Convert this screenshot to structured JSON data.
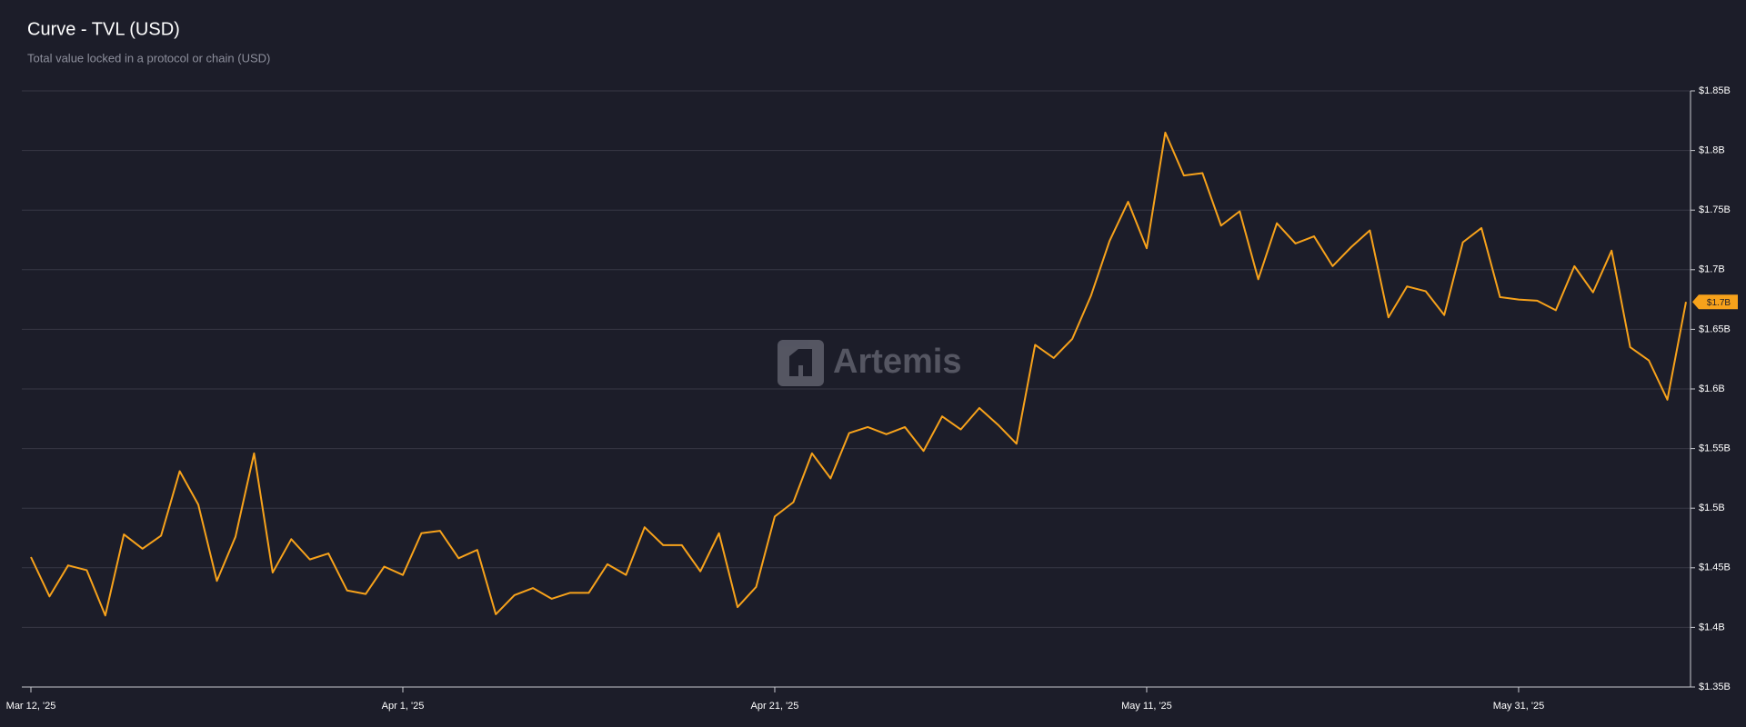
{
  "chart_data": {
    "type": "line",
    "title": "Curve - TVL (USD)",
    "subtitle": "Total value locked in a protocol or chain (USD)",
    "watermark": "Artemis",
    "categories": [
      "Mar 12, '25",
      null,
      null,
      null,
      null,
      null,
      null,
      null,
      null,
      null,
      null,
      null,
      null,
      null,
      null,
      null,
      null,
      null,
      null,
      null,
      "Apr 1, '25",
      null,
      null,
      null,
      null,
      null,
      null,
      null,
      null,
      null,
      null,
      null,
      null,
      null,
      null,
      null,
      null,
      null,
      null,
      null,
      "Apr 21, '25",
      null,
      null,
      null,
      null,
      null,
      null,
      null,
      null,
      null,
      null,
      null,
      null,
      null,
      null,
      null,
      null,
      null,
      null,
      null,
      "May 11, '25",
      null,
      null,
      null,
      null,
      null,
      null,
      null,
      null,
      null,
      null,
      null,
      null,
      null,
      null,
      null,
      null,
      null,
      null,
      null,
      "May 31, '25",
      null,
      null,
      null,
      null,
      null,
      null,
      null,
      null,
      null
    ],
    "series": [
      {
        "name": "TVL",
        "color": "#f7a21b",
        "values": [
          1.459,
          1.426,
          1.452,
          1.448,
          1.41,
          1.478,
          1.466,
          1.477,
          1.531,
          1.503,
          1.439,
          1.476,
          1.546,
          1.446,
          1.474,
          1.457,
          1.462,
          1.431,
          1.428,
          1.451,
          1.444,
          1.479,
          1.481,
          1.458,
          1.465,
          1.411,
          1.427,
          1.433,
          1.424,
          1.429,
          1.429,
          1.453,
          1.444,
          1.484,
          1.469,
          1.469,
          1.447,
          1.479,
          1.417,
          1.434,
          1.493,
          1.505,
          1.546,
          1.525,
          1.563,
          1.568,
          1.562,
          1.568,
          1.548,
          1.577,
          1.566,
          1.584,
          1.57,
          1.554,
          1.637,
          1.626,
          1.642,
          1.678,
          1.724,
          1.757,
          1.718,
          1.815,
          1.779,
          1.781,
          1.737,
          1.749,
          1.692,
          1.739,
          1.722,
          1.728,
          1.703,
          1.719,
          1.733,
          1.66,
          1.686,
          1.682,
          1.662,
          1.723,
          1.735,
          1.677,
          1.675,
          1.674,
          1.666,
          1.703,
          1.681,
          1.716,
          1.635,
          1.624,
          1.591,
          1.673
        ]
      }
    ],
    "last_value_label": "$1.7B",
    "ylim": [
      1.35,
      1.85
    ],
    "yticks": [
      {
        "value": 1.35,
        "label": "$1.35B"
      },
      {
        "value": 1.4,
        "label": "$1.4B"
      },
      {
        "value": 1.45,
        "label": "$1.45B"
      },
      {
        "value": 1.5,
        "label": "$1.5B"
      },
      {
        "value": 1.55,
        "label": "$1.55B"
      },
      {
        "value": 1.6,
        "label": "$1.6B"
      },
      {
        "value": 1.65,
        "label": "$1.65B"
      },
      {
        "value": 1.7,
        "label": "$1.7B"
      },
      {
        "value": 1.75,
        "label": "$1.75B"
      },
      {
        "value": 1.8,
        "label": "$1.8B"
      },
      {
        "value": 1.85,
        "label": "$1.85B"
      }
    ],
    "grid": true
  }
}
